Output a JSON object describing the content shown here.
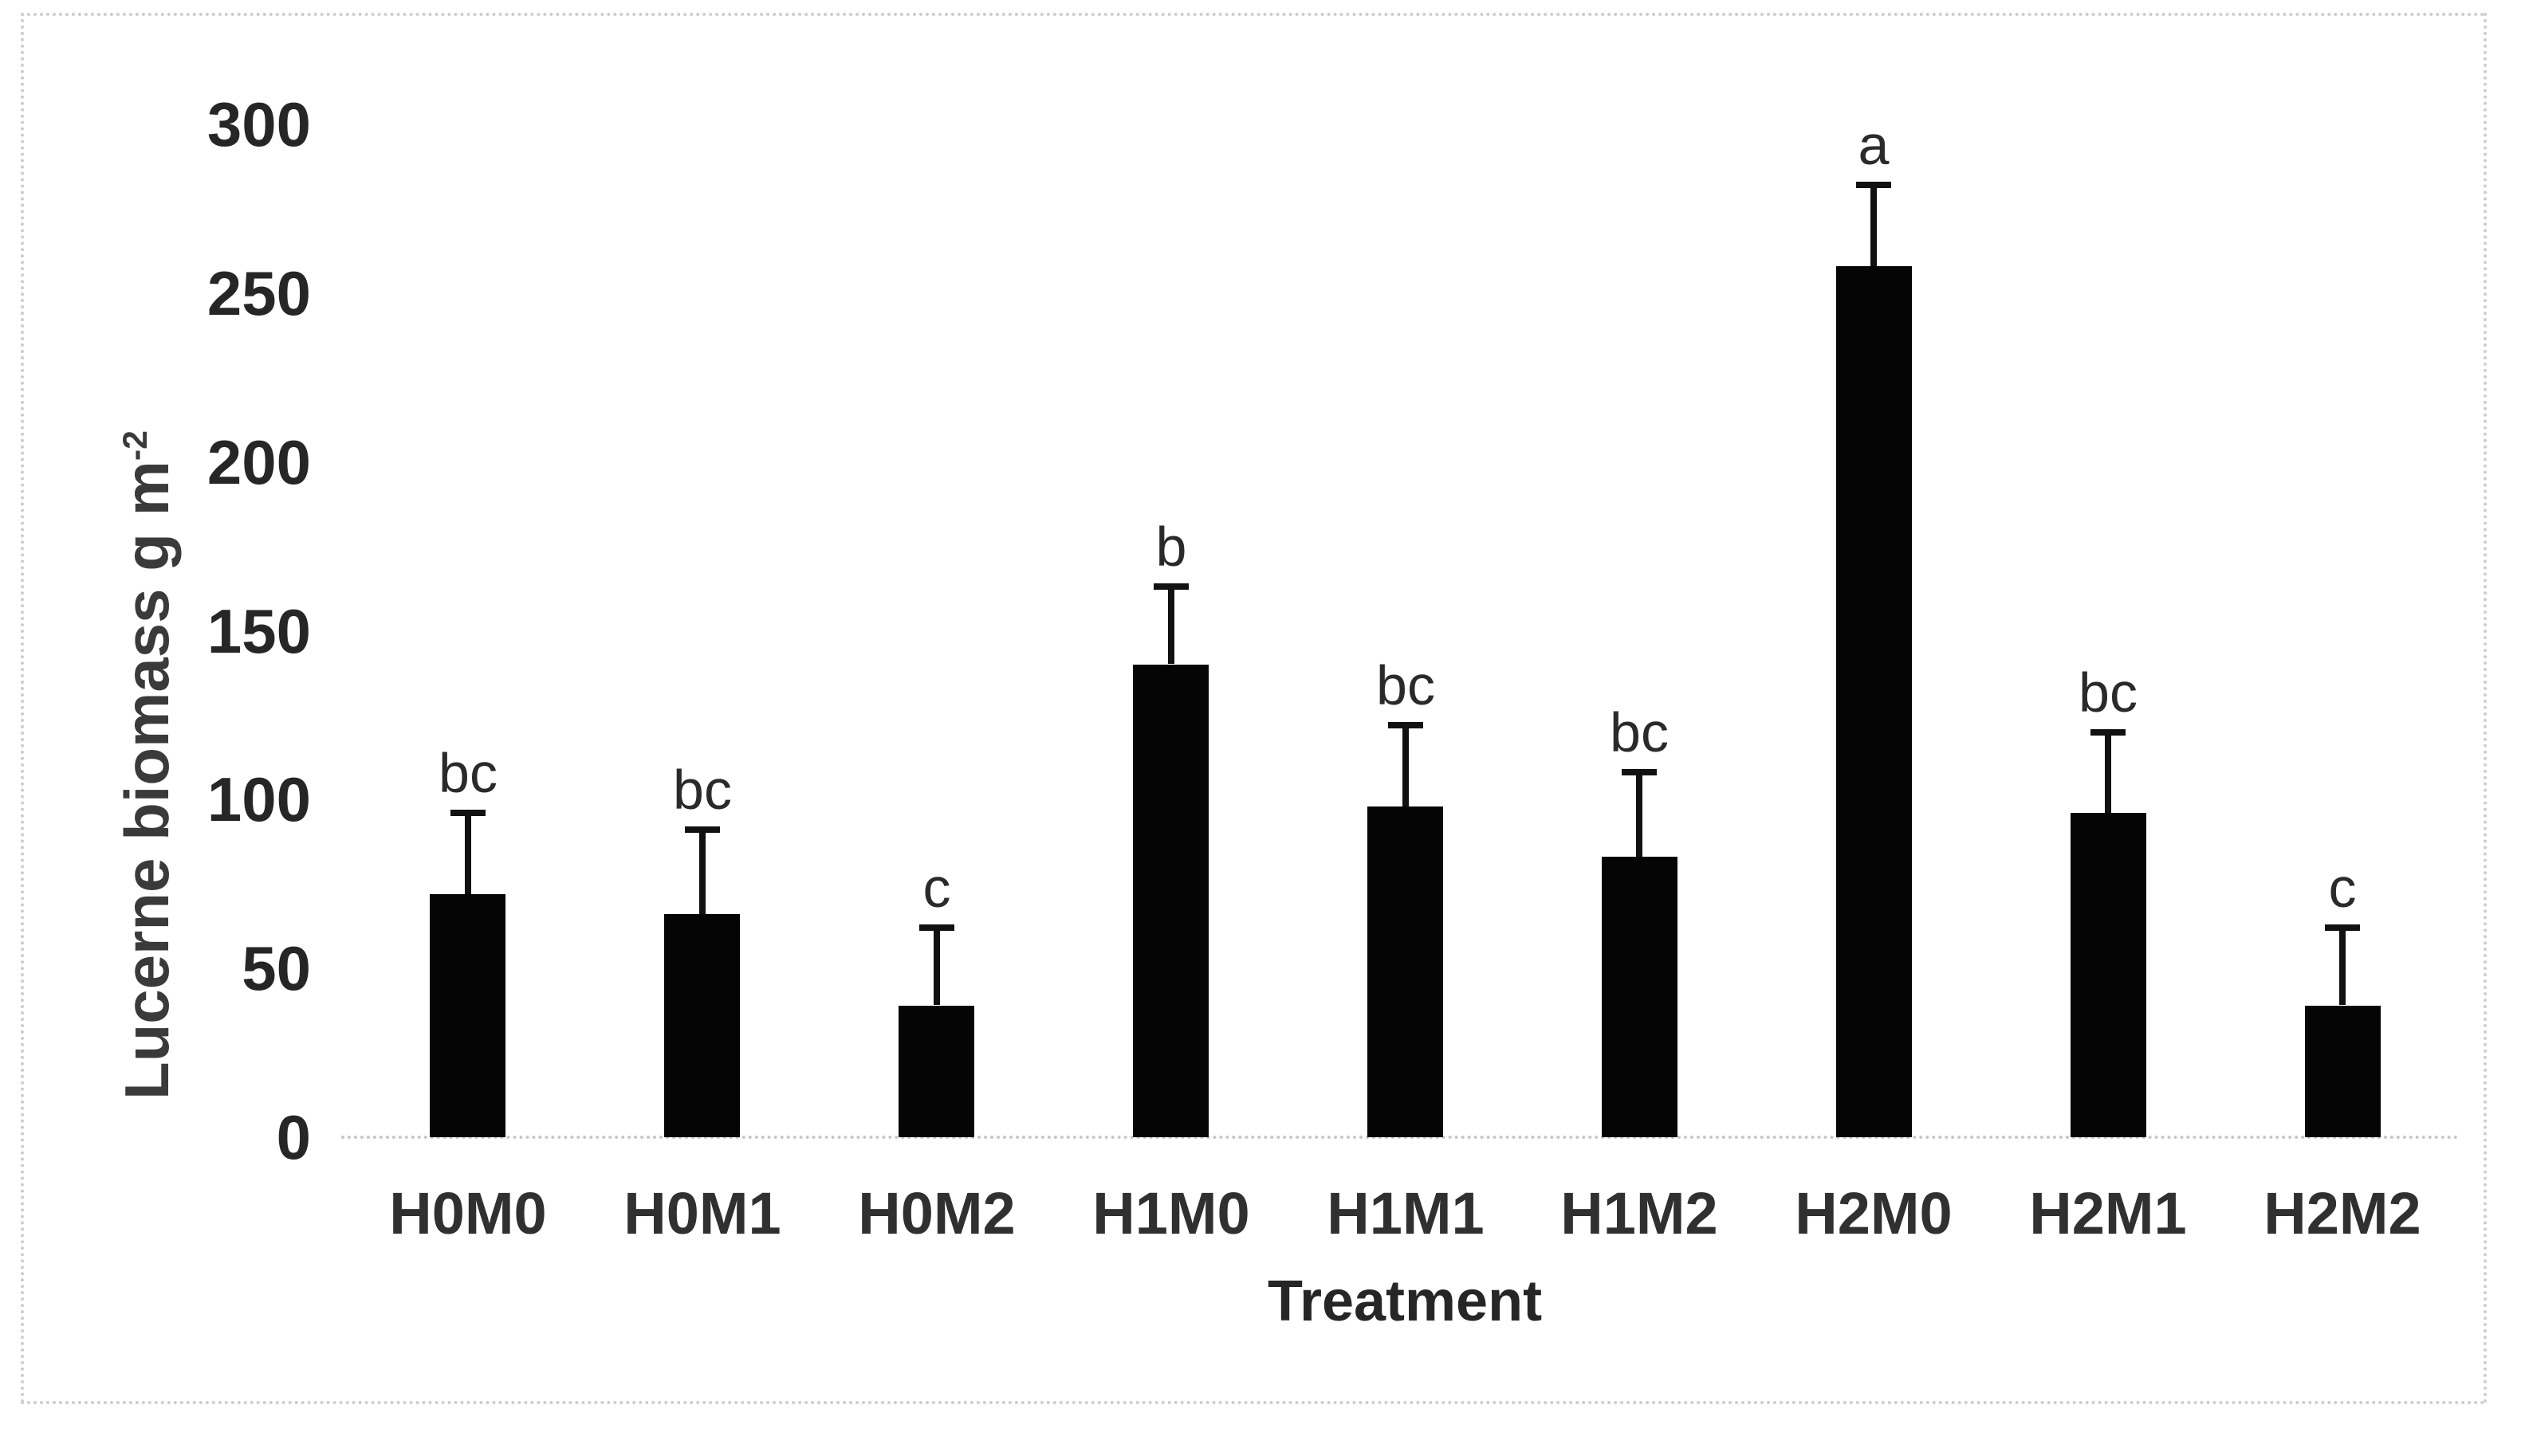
{
  "chart_data": {
    "type": "bar",
    "title": "",
    "xlabel": "Treatment",
    "ylabel_main": "Lucerne biomass g m",
    "ylabel_sup": "-2",
    "categories": [
      "H0M0",
      "H0M1",
      "H0M2",
      "H1M0",
      "H1M1",
      "H1M2",
      "H2M0",
      "H2M1",
      "H2M2"
    ],
    "values": [
      72,
      66,
      39,
      140,
      98,
      83,
      258,
      96,
      39
    ],
    "upper_errors": [
      24,
      25,
      23,
      23,
      24,
      25,
      24,
      24,
      23
    ],
    "sig_letters": [
      "bc",
      "bc",
      "c",
      "b",
      "bc",
      "bc",
      "a",
      "bc",
      "c"
    ],
    "yticks": [
      0,
      50,
      100,
      150,
      200,
      250,
      300
    ],
    "ylim": [
      0,
      300
    ],
    "grid": false,
    "legend": "none",
    "bar_color": "#050505",
    "axis_color": "#c9c6c6",
    "frame_color": "#d2cccc",
    "text_color": "#262626"
  }
}
